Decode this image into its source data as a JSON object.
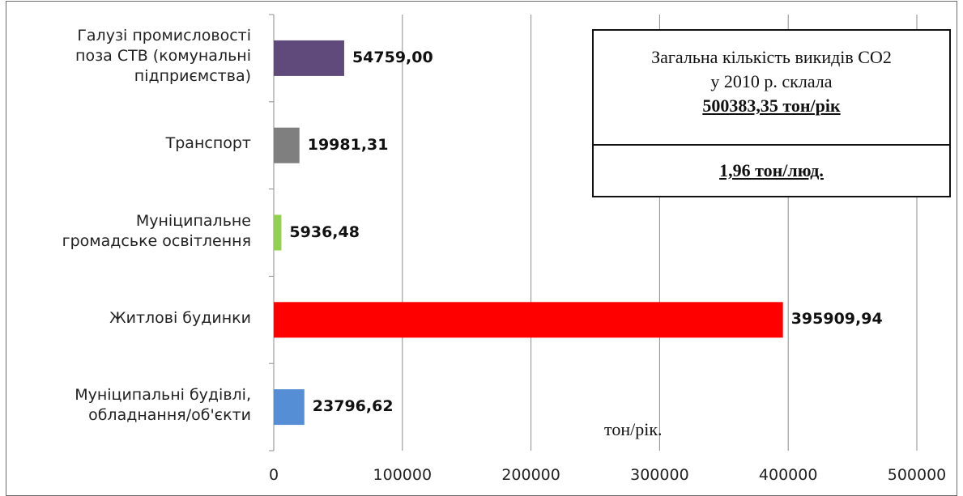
{
  "chart_data": {
    "type": "bar",
    "orientation": "horizontal",
    "categories": [
      "Галузі промисловості поза СТВ (комунальні підприємства)",
      "Транспорт",
      "Муніципальне громадське освітлення",
      "Житлові будинки",
      "Муніципальні будівлі, обладнання/об'єкти"
    ],
    "category_lines": [
      [
        "Галузі промисловості",
        "поза СТВ (комунальні",
        "підприємства)"
      ],
      [
        "Транспорт"
      ],
      [
        "Муніципальне",
        "громадське освітлення"
      ],
      [
        "Житлові будинки"
      ],
      [
        "Муніципальні будівлі,",
        "обладнання/об'єкти"
      ]
    ],
    "values": [
      54759.0,
      19981.31,
      5936.48,
      395909.94,
      23796.62
    ],
    "value_labels": [
      "54759,00",
      "19981,31",
      "5936,48",
      "395909,94",
      "23796,62"
    ],
    "colors": [
      "#604a7b",
      "#7f7f7f",
      "#92d050",
      "#ff0000",
      "#558ed5"
    ],
    "xlim": [
      0,
      500000
    ],
    "xticks": [
      0,
      100000,
      200000,
      300000,
      400000,
      500000
    ],
    "xtick_labels": [
      "0",
      "100000",
      "200000",
      "300000",
      "400000",
      "500000"
    ],
    "unit_label": "тон/рік.",
    "grid": true,
    "legend": "none"
  },
  "info_box": {
    "line1": "Загальна кількість викидів CO2",
    "line2": "у 2010 р. склала",
    "total": "500383,35 тон/рік",
    "per_capita": "1,96 тон/люд."
  }
}
